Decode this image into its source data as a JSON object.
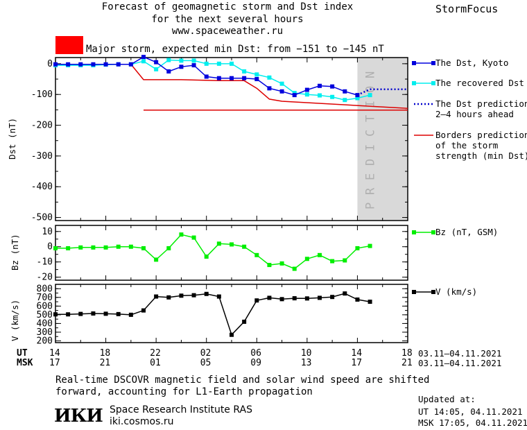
{
  "header": {
    "title_line1": "Forecast of geomagnetic storm and Dst index",
    "title_line2": "for the next several hours",
    "title_line3": "www.spaceweather.ru",
    "brand": "StormFocus",
    "storm_label": "Major storm, expected min Dst: from −151 to −145 nT",
    "storm_color": "#ff0000"
  },
  "legend": {
    "dst_kyoto": "The Dst, Kyoto",
    "dst_recovered": "The recovered Dst",
    "dst_prediction_l1": "The Dst prediction",
    "dst_prediction_l2": "2–4 hours ahead",
    "borders_l1": "Borders prediction",
    "borders_l2": "of the storm",
    "borders_l3": "strength (min Dst)",
    "bz": "Bz (nT, GSM)",
    "v": "V (km/s)"
  },
  "prediction_label": "PREDICTION",
  "time_axis": {
    "ut_label": "UT",
    "msk_label": "MSK",
    "ut_ticks": [
      "14",
      "18",
      "22",
      "02",
      "06",
      "10",
      "14",
      "18"
    ],
    "msk_ticks": [
      "17",
      "21",
      "01",
      "05",
      "09",
      "13",
      "17",
      "21"
    ],
    "ut_range": "03.11–04.11.2021",
    "msk_range": "03.11–04.11.2021"
  },
  "footer": {
    "note_line1": "Real-time DSCOVR magnetic field and solar wind speed are shifted",
    "note_line2": "forward, accounting for L1-Earth propagation",
    "logo": "ИКИ",
    "institute": "Space Research Institute RAS",
    "site": "iki.cosmos.ru",
    "updated_label": "Updated at:",
    "updated_ut": "UT   14:05, 04.11.2021",
    "updated_msk": "MSK 17:05, 04.11.2021"
  },
  "colors": {
    "kyoto": "#0000dd",
    "recovered": "#00eeee",
    "prediction": "#0000cc",
    "borders": "#dd0000",
    "bz": "#00ee00",
    "v": "#000000",
    "prediction_band": "#d9d9d9"
  },
  "chart_data": [
    {
      "type": "line",
      "ylabel": "Dst (nT)",
      "ylim": [
        -510,
        20
      ],
      "yticks": [
        0,
        -100,
        -200,
        -300,
        -400,
        -500
      ],
      "xlim_hours": [
        14,
        42
      ],
      "series": [
        {
          "name": "The Dst, Kyoto",
          "x": [
            14,
            15,
            16,
            17,
            18,
            19,
            20,
            21,
            22,
            23,
            24,
            25,
            26,
            27,
            28,
            29,
            30,
            31,
            32,
            33,
            34,
            35,
            36,
            37,
            38
          ],
          "values": [
            -2,
            -2,
            -2,
            -2,
            -2,
            -2,
            -2,
            22,
            5,
            -25,
            -10,
            -5,
            -42,
            -47,
            -47,
            -47,
            -50,
            -80,
            -90,
            -102,
            -85,
            -72,
            -74,
            -90,
            -102
          ]
        },
        {
          "name": "The recovered Dst",
          "x": [
            14,
            15,
            16,
            17,
            18,
            19,
            20,
            21,
            22,
            23,
            24,
            25,
            26,
            27,
            28,
            29,
            30,
            31,
            32,
            33,
            34,
            35,
            36,
            37,
            38,
            39
          ],
          "values": [
            -5,
            -5,
            -5,
            -5,
            -3,
            -2,
            -2,
            8,
            -18,
            12,
            10,
            10,
            0,
            0,
            0,
            -25,
            -35,
            -45,
            -65,
            -95,
            -100,
            -103,
            -108,
            -118,
            -112,
            -102
          ]
        },
        {
          "name": "The Dst prediction 2–4 hours ahead",
          "x": [
            38,
            39,
            40,
            41,
            42
          ],
          "values": [
            -102,
            -83,
            -83,
            -83,
            -83
          ]
        },
        {
          "name": "Borders prediction of the storm strength (min Dst)",
          "x": [
            14,
            20,
            21,
            24,
            27,
            29,
            30,
            31,
            32,
            42
          ],
          "values": [
            -2,
            -2,
            -52,
            -52,
            -55,
            -55,
            -80,
            -115,
            -122,
            -145
          ]
        },
        {
          "name": "Borders prediction of the storm strength (min Dst)",
          "x": [
            21,
            42
          ],
          "values": [
            -151,
            -151
          ]
        }
      ]
    },
    {
      "type": "line",
      "ylabel": "Bz (nT)",
      "ylim": [
        -22,
        14
      ],
      "yticks": [
        10,
        0,
        -10,
        -20
      ],
      "series": [
        {
          "name": "Bz (nT, GSM)",
          "x": [
            14,
            15,
            16,
            17,
            18,
            19,
            20,
            21,
            22,
            23,
            24,
            25,
            26,
            27,
            28,
            29,
            30,
            31,
            32,
            33,
            34,
            35,
            36,
            37,
            38,
            39
          ],
          "values": [
            -1,
            -1,
            -0.5,
            -0.5,
            -0.5,
            0,
            0,
            -1,
            -8.5,
            -1,
            8,
            6,
            -6.5,
            2,
            1.5,
            0,
            -5.5,
            -12,
            -11,
            -14.5,
            -8,
            -5.5,
            -9.5,
            -9,
            -1,
            0.5
          ]
        }
      ]
    },
    {
      "type": "line",
      "ylabel": "V (km/s)",
      "ylim": [
        180,
        850
      ],
      "yticks": [
        800,
        700,
        600,
        500,
        400,
        300,
        200
      ],
      "series": [
        {
          "name": "V (km/s)",
          "x": [
            14,
            15,
            16,
            17,
            18,
            19,
            20,
            21,
            22,
            23,
            24,
            25,
            26,
            27,
            28,
            29,
            30,
            31,
            32,
            33,
            34,
            35,
            36,
            37,
            38,
            39
          ],
          "values": [
            505,
            505,
            510,
            515,
            512,
            508,
            500,
            550,
            710,
            700,
            720,
            725,
            740,
            710,
            270,
            420,
            665,
            695,
            680,
            690,
            688,
            695,
            705,
            745,
            675,
            650
          ]
        }
      ]
    }
  ]
}
